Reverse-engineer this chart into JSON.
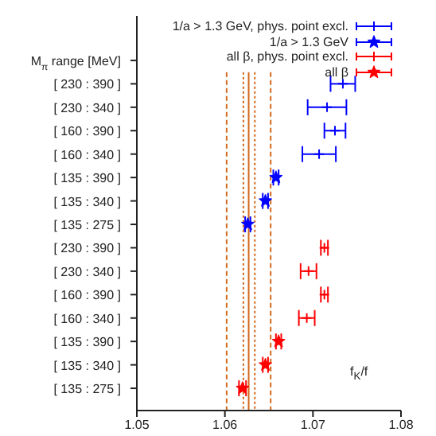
{
  "chart_data": {
    "type": "scatter",
    "orientation": "horizontal",
    "categories": [
      "M$_{π}$ range [MeV]",
      "[ 230 : 390 ]",
      "[ 230 : 340 ]",
      "[ 160 : 390 ]",
      "[ 160 : 340 ]",
      "[ 135 : 390 ]",
      "[ 135 : 340 ]",
      "[ 135 : 275 ]",
      "[ 230 : 390 ]",
      "[ 230 : 340 ]",
      "[ 160 : 390 ]",
      "[ 160 : 340 ]",
      "[ 135 : 390 ]",
      "[ 135 : 340 ]",
      "[ 135 : 275 ]"
    ],
    "xlim": [
      1.05,
      1.08
    ],
    "xticks": [
      1.05,
      1.06,
      1.07,
      1.08
    ],
    "legend": "top right",
    "grid": false,
    "series": [
      {
        "name": "1/a > 1.3 GeV, phys. point excl.",
        "color": "#0000ff",
        "marker": "cross",
        "values": [
          null,
          1.0734,
          1.0716,
          1.0725,
          1.0707,
          null,
          null,
          null,
          null,
          null,
          null,
          null,
          null,
          null,
          null
        ],
        "errors": [
          null,
          0.0014,
          0.0022,
          0.0012,
          0.0019,
          null,
          null,
          null,
          null,
          null,
          null,
          null,
          null,
          null,
          null
        ]
      },
      {
        "name": "1/a > 1.3 GeV",
        "color": "#0000ff",
        "marker": "star",
        "values": [
          null,
          null,
          null,
          null,
          null,
          1.0658,
          1.0646,
          1.0626,
          null,
          null,
          null,
          null,
          null,
          null,
          null
        ],
        "errors": [
          null,
          null,
          null,
          null,
          null,
          0.0003,
          0.0003,
          0.0003,
          null,
          null,
          null,
          null,
          null,
          null,
          null
        ]
      },
      {
        "name": "all β, phys. point excl.",
        "color": "#ff0000",
        "marker": "cross",
        "values": [
          null,
          null,
          null,
          null,
          null,
          null,
          null,
          null,
          1.0713,
          1.0695,
          1.0713,
          1.0693,
          null,
          null,
          null
        ],
        "errors": [
          null,
          null,
          null,
          null,
          null,
          null,
          null,
          null,
          0.0004,
          0.0009,
          0.0004,
          0.0009,
          null,
          null,
          null
        ]
      },
      {
        "name": "all β",
        "color": "#ff0000",
        "marker": "star",
        "values": [
          null,
          null,
          null,
          null,
          null,
          null,
          null,
          null,
          null,
          null,
          null,
          null,
          1.0661,
          1.0646,
          1.062
        ],
        "errors": [
          null,
          null,
          null,
          null,
          null,
          null,
          null,
          null,
          null,
          null,
          null,
          null,
          0.0003,
          0.0003,
          0.0004
        ]
      }
    ],
    "ref_lines": [
      {
        "axis": "x",
        "value": 1.0602,
        "color": "#d2691e",
        "line_style": "dashed"
      },
      {
        "axis": "x",
        "value": 1.0621,
        "color": "#d2691e",
        "line_style": "dotted"
      },
      {
        "axis": "x",
        "value": 1.0627,
        "color": "#d2691e",
        "line_style": "solid"
      },
      {
        "axis": "x",
        "value": 1.0634,
        "color": "#d2691e",
        "line_style": "dotted"
      },
      {
        "axis": "x",
        "value": 1.0652,
        "color": "#d2691e",
        "line_style": "dashed"
      }
    ],
    "annotations": [
      "f$_{K}$/f"
    ]
  }
}
